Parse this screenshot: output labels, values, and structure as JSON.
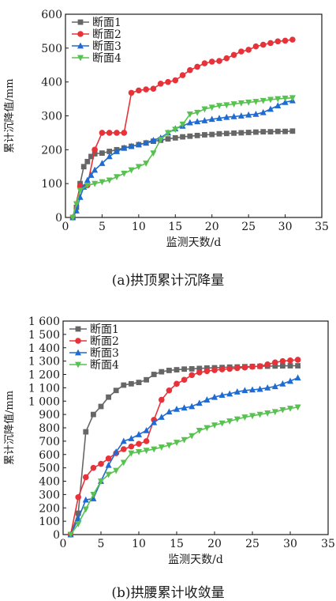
{
  "charts": [
    {
      "caption": "(a)拱顶累计沉降量",
      "chart_data": {
        "type": "line",
        "xlabel": "监测天数/d",
        "ylabel": "累计沉降值/mm",
        "xlim": [
          0,
          35
        ],
        "ylim": [
          0,
          600
        ],
        "xticks": [
          0,
          5,
          10,
          15,
          20,
          25,
          30,
          35
        ],
        "yticks": [
          0,
          100,
          200,
          300,
          400,
          500,
          600
        ],
        "ytick_labels": [
          "0",
          "100",
          "200",
          "300",
          "400",
          "500",
          "600"
        ],
        "grid": false,
        "legend": "top-left",
        "series": [
          {
            "name": "断面1",
            "color": "#666666",
            "marker": "square",
            "x": [
              1,
              1.5,
              2,
              2.5,
              3,
              3.5,
              4,
              5,
              6,
              7,
              8,
              9,
              10,
              11,
              12,
              13,
              14,
              15,
              16,
              17,
              18,
              19,
              20,
              21,
              22,
              23,
              24,
              25,
              26,
              27,
              28,
              29,
              30,
              31
            ],
            "y": [
              0,
              30,
              100,
              150,
              165,
              180,
              188,
              190,
              195,
              200,
              205,
              210,
              215,
              220,
              225,
              228,
              232,
              235,
              238,
              240,
              242,
              244,
              245,
              247,
              248,
              249,
              250,
              251,
              252,
              253,
              253,
              254,
              254,
              255
            ]
          },
          {
            "name": "断面2",
            "color": "#e8323a",
            "marker": "circle",
            "x": [
              1,
              2,
              3,
              4,
              5,
              6,
              7,
              8,
              9,
              10,
              11,
              12,
              13,
              14,
              15,
              16,
              17,
              18,
              19,
              20,
              21,
              22,
              23,
              24,
              25,
              26,
              27,
              28,
              29,
              30,
              31
            ],
            "y": [
              0,
              92,
              95,
              200,
              250,
              250,
              250,
              250,
              368,
              375,
              378,
              380,
              395,
              400,
              405,
              420,
              435,
              445,
              455,
              460,
              462,
              470,
              480,
              490,
              495,
              505,
              510,
              515,
              520,
              522,
              525
            ]
          },
          {
            "name": "断面3",
            "color": "#1f6bd1",
            "marker": "triangle-up",
            "x": [
              1,
              1.5,
              2,
              2.5,
              3,
              3.5,
              4,
              5,
              6,
              7,
              8,
              9,
              10,
              11,
              12,
              13,
              14,
              15,
              16,
              17,
              18,
              19,
              20,
              21,
              22,
              23,
              24,
              25,
              26,
              27,
              28,
              29,
              30,
              31
            ],
            "y": [
              0,
              20,
              60,
              90,
              110,
              125,
              140,
              160,
              180,
              195,
              205,
              210,
              215,
              220,
              228,
              235,
              250,
              262,
              270,
              280,
              283,
              286,
              290,
              293,
              296,
              298,
              300,
              303,
              305,
              310,
              320,
              330,
              340,
              345
            ]
          },
          {
            "name": "断面4",
            "color": "#57c24f",
            "marker": "triangle-down",
            "x": [
              1,
              1.5,
              2,
              3,
              4,
              5,
              6,
              7,
              8,
              9,
              10,
              11,
              12,
              13,
              14,
              15,
              16,
              17,
              18,
              19,
              20,
              21,
              22,
              23,
              24,
              25,
              26,
              27,
              28,
              29,
              30,
              31
            ],
            "y": [
              0,
              40,
              80,
              95,
              100,
              105,
              110,
              120,
              130,
              140,
              150,
              160,
              190,
              230,
              250,
              260,
              275,
              305,
              310,
              320,
              325,
              330,
              332,
              335,
              338,
              340,
              342,
              345,
              348,
              350,
              352,
              353
            ]
          }
        ]
      }
    },
    {
      "caption": "(b)拱腰累计收敛量",
      "chart_data": {
        "type": "line",
        "xlabel": "监测天数/d",
        "ylabel": "累计沉降值/mm",
        "xlim": [
          0,
          35
        ],
        "ylim": [
          0,
          1600
        ],
        "xticks": [
          0,
          5,
          10,
          15,
          20,
          25,
          30,
          35
        ],
        "yticks": [
          0,
          100,
          200,
          300,
          400,
          500,
          600,
          700,
          800,
          900,
          1000,
          1100,
          1200,
          1300,
          1400,
          1500,
          1600
        ],
        "ytick_labels": [
          "0",
          "100",
          "200",
          "300",
          "400",
          "500",
          "600",
          "700",
          "800",
          "900",
          "1 000",
          "1 100",
          "1 200",
          "1 300",
          "1 400",
          "1 500",
          "1 600"
        ],
        "grid": false,
        "legend": "top-left",
        "series": [
          {
            "name": "断面1",
            "color": "#666666",
            "marker": "square",
            "x": [
              1,
              2,
              3,
              4,
              5,
              6,
              7,
              8,
              9,
              10,
              11,
              12,
              13,
              14,
              15,
              16,
              17,
              18,
              19,
              20,
              21,
              22,
              23,
              24,
              25,
              26,
              27,
              28,
              29,
              30,
              31
            ],
            "y": [
              0,
              160,
              770,
              900,
              960,
              1030,
              1080,
              1120,
              1130,
              1140,
              1160,
              1200,
              1220,
              1230,
              1235,
              1240,
              1242,
              1245,
              1248,
              1250,
              1252,
              1255,
              1256,
              1258,
              1260,
              1261,
              1262,
              1263,
              1264,
              1265,
              1265
            ]
          },
          {
            "name": "断面2",
            "color": "#e8323a",
            "marker": "circle",
            "x": [
              1,
              2,
              3,
              4,
              5,
              6,
              7,
              8,
              9,
              10,
              11,
              12,
              13,
              14,
              15,
              16,
              17,
              18,
              19,
              20,
              21,
              22,
              23,
              24,
              25,
              26,
              27,
              28,
              29,
              30,
              31
            ],
            "y": [
              0,
              280,
              430,
              500,
              530,
              570,
              610,
              640,
              660,
              680,
              700,
              860,
              1010,
              1080,
              1130,
              1160,
              1195,
              1215,
              1225,
              1232,
              1238,
              1242,
              1248,
              1252,
              1258,
              1262,
              1275,
              1290,
              1300,
              1305,
              1310
            ]
          },
          {
            "name": "断面3",
            "color": "#1f6bd1",
            "marker": "triangle-up",
            "x": [
              1,
              2,
              3,
              4,
              5,
              6,
              7,
              8,
              9,
              10,
              11,
              12,
              13,
              14,
              15,
              16,
              17,
              18,
              19,
              20,
              21,
              22,
              23,
              24,
              25,
              26,
              27,
              28,
              29,
              30,
              31
            ],
            "y": [
              0,
              120,
              260,
              270,
              400,
              520,
              620,
              700,
              720,
              750,
              780,
              840,
              880,
              920,
              940,
              950,
              960,
              985,
              1010,
              1030,
              1045,
              1055,
              1070,
              1080,
              1085,
              1090,
              1100,
              1110,
              1130,
              1150,
              1175
            ]
          },
          {
            "name": "断面4",
            "color": "#57c24f",
            "marker": "triangle-down",
            "x": [
              1,
              2,
              3,
              4,
              5,
              6,
              7,
              8,
              9,
              10,
              11,
              12,
              13,
              14,
              15,
              16,
              17,
              18,
              19,
              20,
              21,
              22,
              23,
              24,
              25,
              26,
              27,
              28,
              29,
              30,
              31
            ],
            "y": [
              0,
              80,
              190,
              300,
              400,
              450,
              480,
              540,
              610,
              620,
              630,
              640,
              655,
              670,
              690,
              710,
              740,
              780,
              800,
              820,
              835,
              850,
              865,
              880,
              890,
              900,
              910,
              920,
              935,
              945,
              955
            ]
          }
        ]
      }
    }
  ]
}
